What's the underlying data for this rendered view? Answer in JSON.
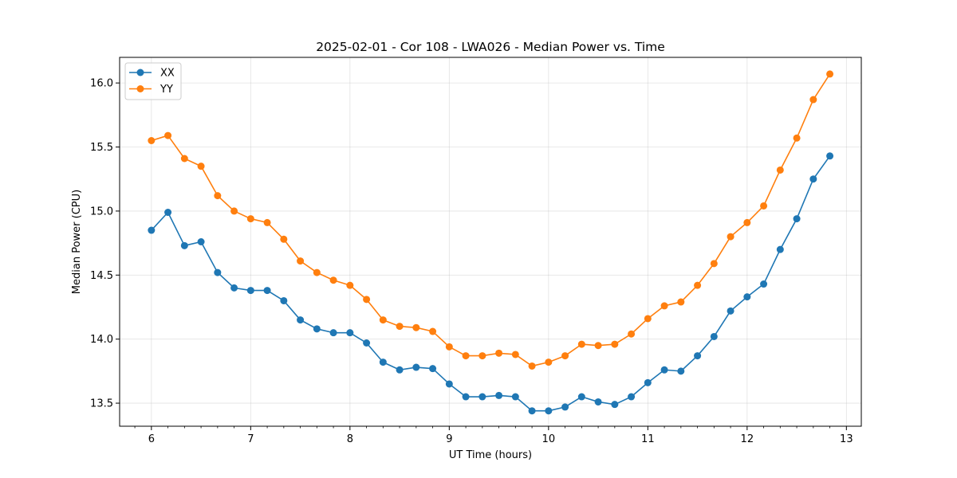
{
  "chart_data": {
    "type": "line",
    "title": "2025-02-01 - Cor 108 - LWA026 - Median Power vs. Time",
    "xlabel": "UT Time (hours)",
    "ylabel": "Median Power (CPU)",
    "xlim": [
      5.68,
      13.15
    ],
    "ylim": [
      13.32,
      16.2
    ],
    "xticks": [
      6,
      7,
      8,
      9,
      10,
      11,
      12,
      13
    ],
    "xtick_labels": [
      "6",
      "7",
      "8",
      "9",
      "10",
      "11",
      "12",
      "13"
    ],
    "yticks": [
      13.5,
      14.0,
      14.5,
      15.0,
      15.5,
      16.0
    ],
    "ytick_labels": [
      "13.5",
      "14.0",
      "14.5",
      "15.0",
      "15.5",
      "16.0"
    ],
    "grid": true,
    "legend_position": "top-left",
    "x": [
      6.0,
      6.1667,
      6.3333,
      6.5,
      6.6667,
      6.8333,
      7.0,
      7.1667,
      7.3333,
      7.5,
      7.6667,
      7.8333,
      8.0,
      8.1667,
      8.3333,
      8.5,
      8.6667,
      8.8333,
      9.0,
      9.1667,
      9.3333,
      9.5,
      9.6667,
      9.8333,
      10.0,
      10.1667,
      10.3333,
      10.5,
      10.6667,
      10.8333,
      11.0,
      11.1667,
      11.3333,
      11.5,
      11.6667,
      11.8333,
      12.0,
      12.1667,
      12.3333,
      12.5,
      12.6667,
      12.8333
    ],
    "series": [
      {
        "name": "XX",
        "color": "#1f77b4",
        "values": [
          14.85,
          14.99,
          14.73,
          14.76,
          14.52,
          14.4,
          14.38,
          14.38,
          14.3,
          14.15,
          14.08,
          14.05,
          14.05,
          13.97,
          13.82,
          13.76,
          13.78,
          13.77,
          13.65,
          13.55,
          13.55,
          13.56,
          13.55,
          13.44,
          13.44,
          13.47,
          13.55,
          13.51,
          13.49,
          13.55,
          13.66,
          13.76,
          13.75,
          13.87,
          14.02,
          14.22,
          14.33,
          14.43,
          14.7,
          14.94,
          15.25,
          15.43
        ]
      },
      {
        "name": "YY",
        "color": "#ff7f0e",
        "values": [
          15.55,
          15.59,
          15.41,
          15.35,
          15.12,
          15.0,
          14.94,
          14.91,
          14.78,
          14.61,
          14.52,
          14.46,
          14.42,
          14.31,
          14.15,
          14.1,
          14.09,
          14.06,
          13.94,
          13.87,
          13.87,
          13.89,
          13.88,
          13.79,
          13.82,
          13.87,
          13.96,
          13.95,
          13.96,
          14.04,
          14.16,
          14.26,
          14.29,
          14.42,
          14.59,
          14.8,
          14.91,
          15.04,
          15.32,
          15.57,
          15.87,
          16.07
        ]
      }
    ]
  }
}
